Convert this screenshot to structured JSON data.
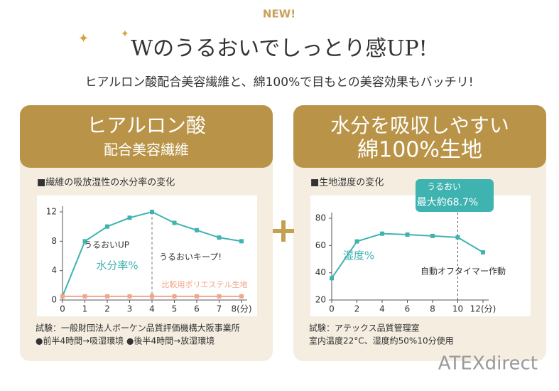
{
  "header": {
    "badge": "NEW!",
    "title": "Wのうるおいでしっとり感UP!",
    "subtitle": "ヒアルロン酸配合美容繊維と、綿100%で目もとの美容効果もバッチリ!",
    "brand": "ATEXdirect"
  },
  "chart_data": [
    {
      "type": "line",
      "panel_title": "ヒアルロン酸",
      "panel_subtitle": "配合美容繊維",
      "title": "■繊維の吸放湿性の水分率の変化",
      "x": [
        0,
        1,
        2,
        3,
        4,
        5,
        6,
        7,
        8
      ],
      "xlim": [
        0,
        8
      ],
      "xticks": [
        0,
        1,
        2,
        3,
        4,
        5,
        6,
        7,
        {
          "value": 8,
          "label": "8(分)"
        }
      ],
      "ylim": [
        0,
        12
      ],
      "yticks": [
        0,
        4,
        8,
        12
      ],
      "series": [
        {
          "name": "水分率%",
          "color": "#3fb3b0",
          "values": [
            0.5,
            8,
            10,
            11.2,
            12,
            10.5,
            9.5,
            8.5,
            8
          ]
        },
        {
          "name": "比較用ポリエステル生地",
          "color": "#f0a68a",
          "values": [
            0.5,
            0.5,
            0.5,
            0.5,
            0.5,
            0.5,
            0.5,
            0.5,
            0.5
          ]
        }
      ],
      "annotations": [
        "うるおいUP",
        "うるおいキープ!"
      ],
      "notes": [
        "試験：一般財団法人ボーケン品質評価機構大阪事業所",
        "●前半4時間→吸湿環境 ●後半4時間→放湿環境"
      ]
    },
    {
      "type": "line",
      "panel_title": "水分を吸収しやすい",
      "panel_subtitle": "綿100%生地",
      "title": "■生地湿度の変化",
      "x": [
        0,
        2,
        4,
        6,
        8,
        10,
        12
      ],
      "xlim": [
        0,
        12
      ],
      "xticks": [
        0,
        2,
        4,
        6,
        8,
        10,
        {
          "value": 12,
          "label": "12(分)"
        }
      ],
      "ylim": [
        20,
        80
      ],
      "yticks": [
        20,
        40,
        60,
        80
      ],
      "series": [
        {
          "name": "湿度%",
          "color": "#3fb3b0",
          "values": [
            36,
            63,
            68.7,
            68,
            67,
            66,
            55
          ]
        }
      ],
      "annotations": [
        "うるおい",
        "最大約68.7%",
        "自動オフタイマー作動"
      ],
      "notes": [
        "試験：アテックス品質管理室",
        "室内温度22°C、湿度約50%10分使用"
      ]
    }
  ]
}
